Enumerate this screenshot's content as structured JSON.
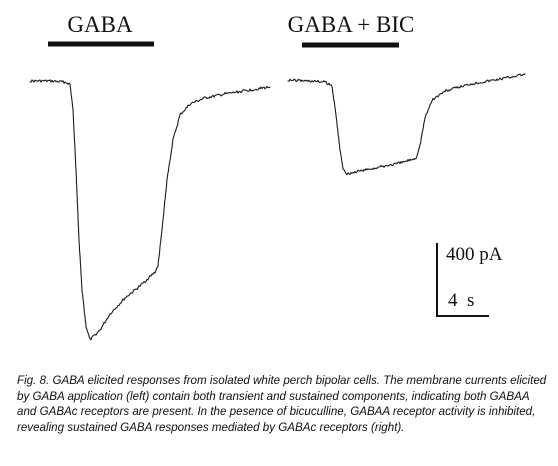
{
  "figure": {
    "left_label": "GABA",
    "right_label": "GABA + BIC",
    "scale_current": "400 pA",
    "scale_time": "4  s"
  },
  "caption": "Fig. 8. GABA elicited responses from isolated white perch bipolar cells. The membrane currents elicited by GABA application (left) contain both transient and sustained components, indicating both GABAA and GABAc receptors are present. In the pesence of bicuculline, GABAA receptor activity  is inhibited, revealing sustained GABA responses mediated by GABAc receptors (right)."
}
